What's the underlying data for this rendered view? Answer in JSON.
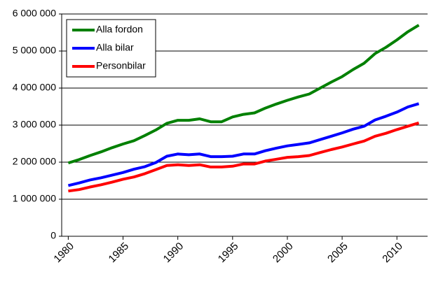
{
  "chart_data": {
    "type": "line",
    "x": [
      1980,
      1981,
      1982,
      1983,
      1984,
      1985,
      1986,
      1987,
      1988,
      1989,
      1990,
      1991,
      1992,
      1993,
      1994,
      1995,
      1996,
      1997,
      1998,
      1999,
      2000,
      2001,
      2002,
      2003,
      2004,
      2005,
      2006,
      2007,
      2008,
      2009,
      2010,
      2011,
      2012
    ],
    "xlim": [
      1979.4,
      2012.8
    ],
    "xticks": [
      1980,
      1985,
      1990,
      1995,
      2000,
      2005,
      2010
    ],
    "ylim": [
      0,
      6000000
    ],
    "yticks": [
      0,
      {
        "value": 1000000,
        "label": "1 000 000"
      },
      {
        "value": 2000000,
        "label": "2 000 000"
      },
      {
        "value": 3000000,
        "label": "3 000 000"
      },
      {
        "value": 4000000,
        "label": "4 000 000"
      },
      {
        "value": 5000000,
        "label": "5 000 000"
      },
      {
        "value": 6000000,
        "label": "6 000 000"
      }
    ],
    "grid": true,
    "legend": "top-left",
    "series": [
      {
        "name": "Alla fordon",
        "color": "#008000",
        "values": [
          1980000,
          2070000,
          2180000,
          2280000,
          2390000,
          2490000,
          2580000,
          2720000,
          2870000,
          3050000,
          3130000,
          3130000,
          3170000,
          3090000,
          3090000,
          3220000,
          3290000,
          3330000,
          3460000,
          3570000,
          3670000,
          3760000,
          3840000,
          4000000,
          4160000,
          4310000,
          4500000,
          4670000,
          4930000,
          5100000,
          5300000,
          5520000,
          5700000
        ]
      },
      {
        "name": "Alla bilar",
        "color": "#0000ff",
        "values": [
          1370000,
          1440000,
          1520000,
          1580000,
          1650000,
          1720000,
          1810000,
          1880000,
          1990000,
          2160000,
          2220000,
          2200000,
          2220000,
          2150000,
          2150000,
          2160000,
          2220000,
          2220000,
          2310000,
          2380000,
          2440000,
          2480000,
          2520000,
          2610000,
          2700000,
          2790000,
          2890000,
          2970000,
          3140000,
          3240000,
          3350000,
          3490000,
          3580000
        ]
      },
      {
        "name": "Personbilar",
        "color": "#ff0000",
        "values": [
          1220000,
          1260000,
          1330000,
          1390000,
          1460000,
          1540000,
          1600000,
          1690000,
          1800000,
          1910000,
          1930000,
          1910000,
          1930000,
          1870000,
          1870000,
          1890000,
          1950000,
          1950000,
          2030000,
          2080000,
          2130000,
          2150000,
          2180000,
          2260000,
          2340000,
          2410000,
          2490000,
          2570000,
          2700000,
          2780000,
          2880000,
          2970000,
          3060000
        ]
      }
    ]
  }
}
